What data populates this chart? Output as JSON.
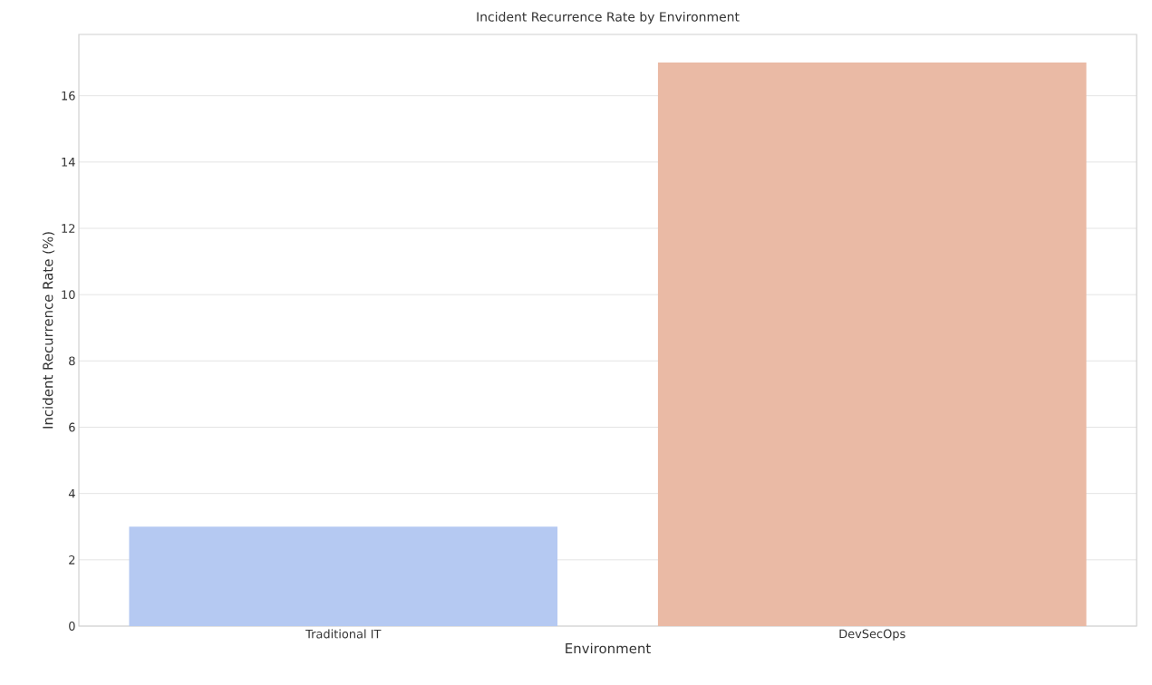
{
  "chart_data": {
    "type": "bar",
    "title": "Incident Recurrence Rate by Environment",
    "xlabel": "Environment",
    "ylabel": "Incident Recurrence Rate (%)",
    "categories": [
      "Traditional IT",
      "DevSecOps"
    ],
    "values": [
      3,
      17
    ],
    "colors": [
      "#b5c9f2",
      "#eabaa5"
    ],
    "ylim": [
      0,
      17.85
    ],
    "yticks": [
      0,
      2,
      4,
      6,
      8,
      10,
      12,
      14,
      16
    ],
    "grid": "y"
  }
}
